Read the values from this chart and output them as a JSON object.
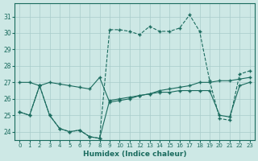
{
  "line1_x": [
    0,
    1,
    2,
    3,
    4,
    5,
    6,
    7,
    8,
    9,
    10,
    11,
    12,
    13,
    14,
    15,
    16,
    17,
    18,
    19,
    20,
    21,
    22,
    23
  ],
  "line1_y": [
    25.2,
    25.0,
    26.8,
    25.0,
    24.2,
    24.0,
    24.1,
    23.7,
    23.6,
    30.2,
    30.2,
    30.1,
    29.9,
    30.4,
    30.1,
    30.1,
    30.3,
    31.1,
    30.1,
    27.1,
    24.8,
    24.7,
    27.5,
    27.7
  ],
  "line2_x": [
    0,
    1,
    2,
    3,
    4,
    5,
    6,
    7,
    8,
    9,
    10,
    11,
    12,
    13,
    14,
    15,
    16,
    17,
    18,
    19,
    20,
    21,
    22,
    23
  ],
  "line2_y": [
    27.0,
    27.0,
    26.8,
    27.0,
    26.9,
    26.8,
    26.7,
    26.6,
    27.3,
    25.8,
    25.9,
    26.0,
    26.2,
    26.3,
    26.5,
    26.6,
    26.7,
    26.8,
    27.0,
    27.0,
    27.1,
    27.1,
    27.2,
    27.3
  ],
  "line3_x": [
    0,
    1,
    2,
    3,
    4,
    5,
    6,
    7,
    8,
    9,
    10,
    11,
    12,
    13,
    14,
    15,
    16,
    17,
    18,
    19,
    20,
    21,
    22,
    23
  ],
  "line3_y": [
    25.2,
    25.0,
    26.8,
    25.0,
    24.2,
    24.0,
    24.1,
    23.7,
    23.6,
    25.9,
    26.0,
    26.1,
    26.2,
    26.3,
    26.4,
    26.4,
    26.5,
    26.5,
    26.5,
    26.5,
    25.0,
    24.9,
    26.8,
    27.0
  ],
  "bg_color": "#cde8e5",
  "grid_color": "#a8ccca",
  "line_color": "#1a6b5e",
  "xlim": [
    -0.5,
    23.5
  ],
  "ylim": [
    23.5,
    31.8
  ],
  "yticks": [
    24,
    25,
    26,
    27,
    28,
    29,
    30,
    31
  ],
  "xticks": [
    0,
    1,
    2,
    3,
    4,
    5,
    6,
    7,
    8,
    9,
    10,
    11,
    12,
    13,
    14,
    15,
    16,
    17,
    18,
    19,
    20,
    21,
    22,
    23
  ],
  "xlabel": "Humidex (Indice chaleur)"
}
